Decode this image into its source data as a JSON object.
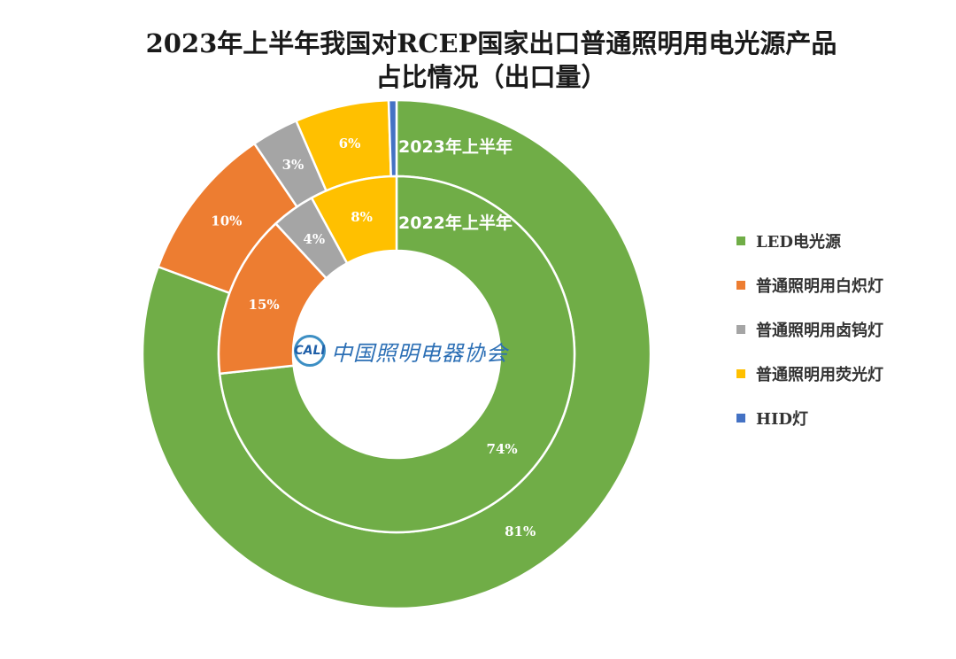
{
  "title": {
    "line1": "2023年上半年我国对RCEP国家出口普通照明用电光源产品",
    "line2": "占比情况（出口量）"
  },
  "watermark": {
    "mark": "CALI",
    "text": "中国照明电器协会"
  },
  "colors": {
    "LED": "#70ad47",
    "incandescent": "#ed7d31",
    "halogen": "#a5a5a5",
    "fluorescent": "#ffc000",
    "HID": "#4472c4"
  },
  "chart_data": {
    "type": "pie",
    "subtype": "doughnut",
    "title": "2023年上半年我国对RCEP国家出口普通照明用电光源产品占比情况（出口量）",
    "categories": [
      "LED电光源",
      "普通照明用白炽灯",
      "普通照明用卤钨灯",
      "普通照明用荧光灯",
      "HID灯"
    ],
    "series": [
      {
        "name": "2023年上半年",
        "ring": "outer",
        "values": [
          81,
          10,
          3,
          6,
          0.5
        ],
        "labels": [
          "81%",
          "10%",
          "3%",
          "6%",
          ""
        ]
      },
      {
        "name": "2022年上半年",
        "ring": "inner",
        "values": [
          74,
          15,
          4,
          8,
          0
        ],
        "labels": [
          "74%",
          "15%",
          "4%",
          "8%",
          ""
        ]
      }
    ],
    "legend_position": "right"
  }
}
